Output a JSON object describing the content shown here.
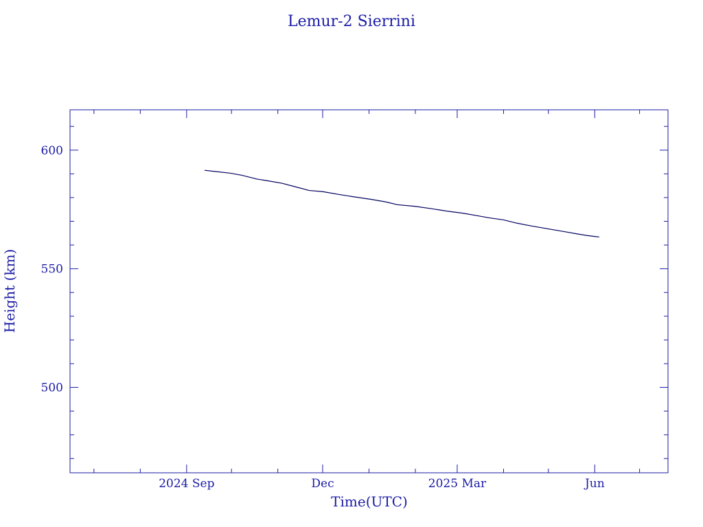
{
  "chart_data": {
    "type": "line",
    "title": "Lemur-2 Sierrini",
    "xlabel": "Time(UTC)",
    "ylabel": "Height (km)",
    "color": "#1a1aa6",
    "x_axis": {
      "type": "date",
      "range": [
        "2024-06-15",
        "2025-07-20"
      ],
      "tick_labels": [
        {
          "date": "2024-09-01",
          "label": "2024 Sep"
        },
        {
          "date": "2024-12-01",
          "label": "Dec"
        },
        {
          "date": "2025-03-01",
          "label": "2025 Mar"
        },
        {
          "date": "2025-06-01",
          "label": "Jun"
        }
      ],
      "minor_ticks": [
        "2024-07-01",
        "2024-08-01",
        "2024-10-01",
        "2024-11-01",
        "2025-01-01",
        "2025-02-01",
        "2025-04-01",
        "2025-05-01",
        "2025-07-01"
      ]
    },
    "y_axis": {
      "range": [
        464,
        617
      ],
      "major_ticks": [
        500,
        550,
        600
      ],
      "minor_ticks": [
        470,
        480,
        490,
        510,
        520,
        530,
        540,
        560,
        570,
        580,
        590,
        610
      ]
    },
    "grid": false,
    "series": [
      {
        "points": [
          [
            "2024-09-13",
            591.5
          ],
          [
            "2024-09-20",
            591.0
          ],
          [
            "2024-09-30",
            590.3
          ],
          [
            "2024-10-08",
            589.4
          ],
          [
            "2024-10-13",
            588.6
          ],
          [
            "2024-10-18",
            587.8
          ],
          [
            "2024-10-26",
            587.0
          ],
          [
            "2024-11-04",
            586.0
          ],
          [
            "2024-11-13",
            584.5
          ],
          [
            "2024-11-22",
            583.0
          ],
          [
            "2024-12-01",
            582.5
          ],
          [
            "2024-12-12",
            581.3
          ],
          [
            "2024-12-22",
            580.3
          ],
          [
            "2025-01-02",
            579.3
          ],
          [
            "2025-01-12",
            578.2
          ],
          [
            "2025-01-20",
            577.0
          ],
          [
            "2025-02-01",
            576.3
          ],
          [
            "2025-02-12",
            575.3
          ],
          [
            "2025-02-22",
            574.3
          ],
          [
            "2025-03-05",
            573.4
          ],
          [
            "2025-03-15",
            572.3
          ],
          [
            "2025-03-22",
            571.5
          ],
          [
            "2025-04-01",
            570.6
          ],
          [
            "2025-04-10",
            569.2
          ],
          [
            "2025-04-20",
            568.0
          ],
          [
            "2025-05-01",
            566.8
          ],
          [
            "2025-05-12",
            565.6
          ],
          [
            "2025-05-22",
            564.5
          ],
          [
            "2025-05-27",
            564.0
          ],
          [
            "2025-06-01",
            563.6
          ],
          [
            "2025-06-04",
            563.4
          ]
        ]
      }
    ]
  }
}
